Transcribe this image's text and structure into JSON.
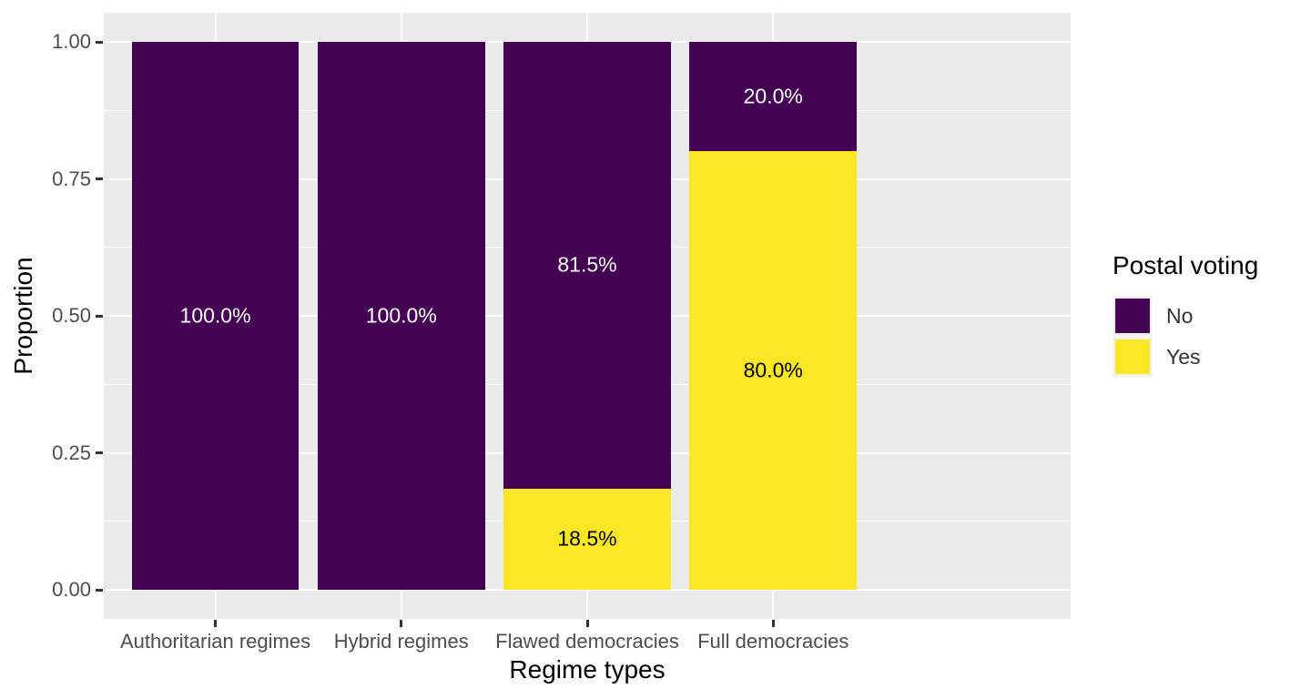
{
  "figure": {
    "background_color": "#FFFFFF",
    "panel_background_color": "#EBEBEB",
    "gridline_color": "#FFFFFF",
    "tick_mark_color": "#333333",
    "tick_label_color": "#4D4D4D",
    "axis_title_color": "#000000"
  },
  "chart_data": {
    "type": "bar",
    "subtype": "stacked-proportion",
    "title": "",
    "xlabel": "Regime types",
    "ylabel": "Proportion",
    "categories": [
      "Authoritarian regimes",
      "Hybrid regimes",
      "Flawed democracies",
      "Full democracies"
    ],
    "series": [
      {
        "name": "No",
        "color": "#440154",
        "label_color": "#FFFFFF",
        "values": [
          1.0,
          1.0,
          0.815,
          0.2
        ],
        "labels": [
          "100.0%",
          "100.0%",
          "81.5%",
          "20.0%"
        ]
      },
      {
        "name": "Yes",
        "color": "#FDE725",
        "label_color": "#000000",
        "values": [
          0.0,
          0.0,
          0.185,
          0.8
        ],
        "labels": [
          "",
          "",
          "18.5%",
          "80.0%"
        ]
      }
    ],
    "stack_order_top_to_bottom": [
      "No",
      "Yes"
    ],
    "ylim": [
      0,
      1
    ],
    "y_ticks": [
      {
        "value": 0.0,
        "label": "0.00"
      },
      {
        "value": 0.25,
        "label": "0.25"
      },
      {
        "value": 0.5,
        "label": "0.50"
      },
      {
        "value": 0.75,
        "label": "0.75"
      },
      {
        "value": 1.0,
        "label": "1.00"
      }
    ],
    "y_minor_ticks": [
      0.125,
      0.375,
      0.625,
      0.875
    ],
    "grid": true,
    "legend": {
      "title": "Postal voting",
      "position": "right",
      "key_background": "#F2F2F2",
      "entries": [
        {
          "label": "No",
          "color": "#440154"
        },
        {
          "label": "Yes",
          "color": "#FDE725"
        }
      ]
    }
  }
}
